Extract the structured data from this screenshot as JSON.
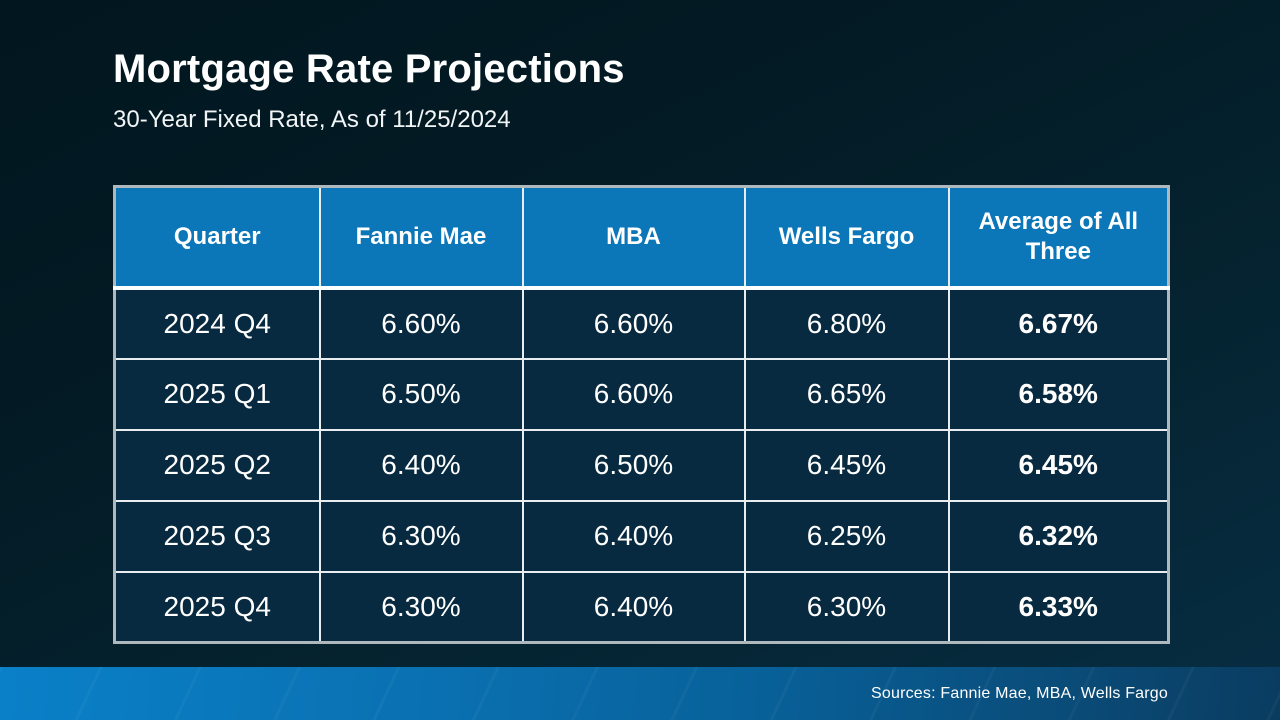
{
  "slide": {
    "title": "Mortgage Rate Projections",
    "subtitle": "30-Year Fixed Rate, As of 11/25/2024"
  },
  "table": {
    "columns": [
      "Quarter",
      "Fannie Mae",
      "MBA",
      "Wells Fargo",
      "Average of All Three"
    ],
    "rows": [
      {
        "cells": [
          "2024 Q4",
          "6.60%",
          "6.60%",
          "6.80%",
          "6.67%"
        ]
      },
      {
        "cells": [
          "2025 Q1",
          "6.50%",
          "6.60%",
          "6.65%",
          "6.58%"
        ]
      },
      {
        "cells": [
          "2025 Q2",
          "6.40%",
          "6.50%",
          "6.45%",
          "6.45%"
        ]
      },
      {
        "cells": [
          "2025 Q3",
          "6.30%",
          "6.40%",
          "6.25%",
          "6.32%"
        ]
      },
      {
        "cells": [
          "2025 Q4",
          "6.30%",
          "6.40%",
          "6.30%",
          "6.33%"
        ]
      }
    ]
  },
  "footer": {
    "sources": "Sources: Fannie Mae, MBA, Wells Fargo"
  },
  "colors": {
    "background_dark": "#031b25",
    "header_blue": "#0b76b8",
    "cell_navy": "#082a40",
    "border_light": "#e9edef",
    "footer_blue_left": "#0a80c8",
    "footer_blue_right": "#0a3c60",
    "text": "#ffffff"
  },
  "chart_data": {
    "type": "table",
    "title": "Mortgage Rate Projections",
    "subtitle": "30-Year Fixed Rate, As of 11/25/2024",
    "columns": [
      "Quarter",
      "Fannie Mae",
      "MBA",
      "Wells Fargo",
      "Average of All Three"
    ],
    "unit": "%",
    "rows": [
      [
        "2024 Q4",
        6.6,
        6.6,
        6.8,
        6.67
      ],
      [
        "2025 Q1",
        6.5,
        6.6,
        6.65,
        6.58
      ],
      [
        "2025 Q2",
        6.4,
        6.5,
        6.45,
        6.45
      ],
      [
        "2025 Q3",
        6.3,
        6.4,
        6.25,
        6.32
      ],
      [
        "2025 Q4",
        6.3,
        6.4,
        6.3,
        6.33
      ]
    ],
    "sources": "Fannie Mae, MBA, Wells Fargo",
    "layout": {
      "grid": true,
      "header_position": "top",
      "bold_column": "Average of All Three"
    }
  }
}
